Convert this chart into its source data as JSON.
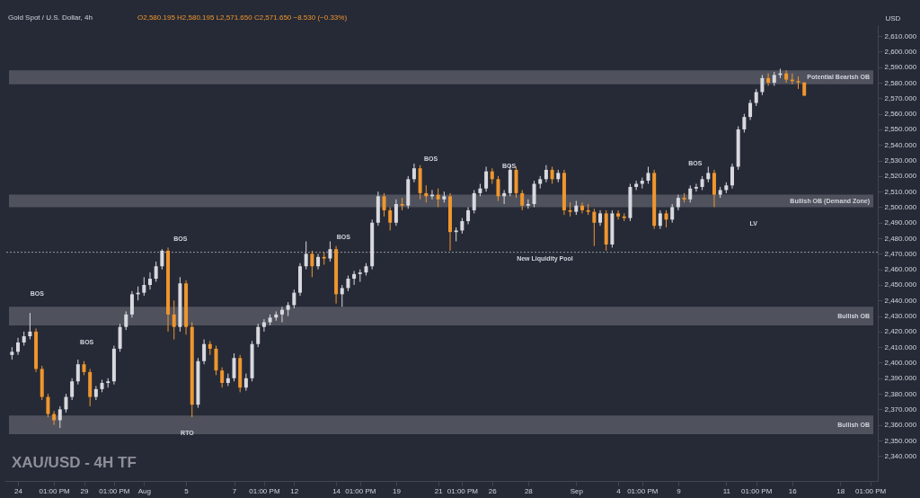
{
  "chart_data": {
    "type": "candlestick",
    "title": "XAU/USD - 4H TF",
    "subtitle": "Gold Spot / U.S. Dollar, 4h",
    "ylabel": "USD",
    "categories": [
      null,
      "24",
      null,
      null,
      null,
      null,
      null,
      "01:00 PM",
      null,
      null,
      null,
      null,
      "29",
      null,
      null,
      null,
      null,
      "01:00 PM",
      null,
      null,
      null,
      null,
      "Aug",
      null,
      null,
      null,
      null,
      null,
      null,
      "5",
      null,
      null,
      null,
      null,
      null,
      null,
      null,
      "7",
      null,
      null,
      null,
      null,
      "01:00 PM",
      null,
      null,
      null,
      null,
      "12",
      null,
      null,
      null,
      null,
      null,
      null,
      "14",
      null,
      null,
      null,
      "01:00 PM",
      null,
      null,
      null,
      null,
      null,
      "19",
      null,
      null,
      null,
      null,
      null,
      null,
      "21",
      null,
      null,
      null,
      "01:00 PM",
      null,
      null,
      null,
      null,
      "26",
      null,
      null,
      null,
      null,
      null,
      "28",
      null,
      null,
      null,
      null,
      null,
      null,
      null,
      "Sep",
      null,
      null,
      null,
      null,
      null,
      null,
      "4",
      null,
      null,
      null,
      "01:00 PM",
      null,
      null,
      null,
      null,
      null,
      "9",
      null,
      null,
      null,
      null,
      null,
      null,
      null,
      "11",
      null,
      null,
      null,
      null,
      "01:00 PM",
      null,
      null,
      null,
      null,
      null,
      "16",
      null,
      null,
      null,
      null,
      null,
      null,
      null,
      "18",
      null,
      null,
      null,
      null,
      "01:00 PM"
    ],
    "ohlc": [
      [
        2405,
        2410,
        2402,
        2407
      ],
      [
        2407,
        2416,
        2405,
        2413
      ],
      [
        2413,
        2420,
        2411,
        2417
      ],
      [
        2417,
        2432,
        2415,
        2420
      ],
      [
        2420,
        2422,
        2394,
        2396
      ],
      [
        2396,
        2398,
        2376,
        2378
      ],
      [
        2378,
        2380,
        2365,
        2367
      ],
      [
        2367,
        2369,
        2360,
        2363
      ],
      [
        2363,
        2372,
        2358,
        2370
      ],
      [
        2370,
        2380,
        2368,
        2378
      ],
      [
        2378,
        2390,
        2376,
        2388
      ],
      [
        2388,
        2402,
        2386,
        2399
      ],
      [
        2399,
        2401,
        2392,
        2394
      ],
      [
        2394,
        2396,
        2372,
        2378
      ],
      [
        2378,
        2385,
        2376,
        2383
      ],
      [
        2383,
        2389,
        2381,
        2387
      ],
      [
        2387,
        2390,
        2384,
        2388
      ],
      [
        2388,
        2411,
        2386,
        2409
      ],
      [
        2409,
        2425,
        2407,
        2423
      ],
      [
        2423,
        2433,
        2421,
        2431
      ],
      [
        2431,
        2446,
        2429,
        2444
      ],
      [
        2444,
        2449,
        2440,
        2445
      ],
      [
        2445,
        2455,
        2443,
        2450
      ],
      [
        2450,
        2458,
        2447,
        2454
      ],
      [
        2454,
        2465,
        2452,
        2462
      ],
      [
        2462,
        2473,
        2460,
        2472
      ],
      [
        2472,
        2474,
        2420,
        2431
      ],
      [
        2431,
        2440,
        2415,
        2423
      ],
      [
        2423,
        2455,
        2420,
        2451
      ],
      [
        2451,
        2453,
        2418,
        2423
      ],
      [
        2423,
        2426,
        2365,
        2373
      ],
      [
        2373,
        2403,
        2371,
        2401
      ],
      [
        2401,
        2415,
        2399,
        2412
      ],
      [
        2412,
        2414,
        2405,
        2409
      ],
      [
        2409,
        2411,
        2392,
        2395
      ],
      [
        2395,
        2397,
        2384,
        2387
      ],
      [
        2387,
        2393,
        2385,
        2390
      ],
      [
        2390,
        2406,
        2388,
        2403
      ],
      [
        2403,
        2405,
        2381,
        2384
      ],
      [
        2384,
        2393,
        2382,
        2390
      ],
      [
        2390,
        2414,
        2388,
        2412
      ],
      [
        2412,
        2425,
        2410,
        2423
      ],
      [
        2423,
        2428,
        2420,
        2426
      ],
      [
        2426,
        2431,
        2424,
        2429
      ],
      [
        2429,
        2433,
        2427,
        2431
      ],
      [
        2431,
        2436,
        2426,
        2434
      ],
      [
        2434,
        2439,
        2430,
        2437
      ],
      [
        2437,
        2447,
        2435,
        2445
      ],
      [
        2445,
        2464,
        2443,
        2462
      ],
      [
        2462,
        2478,
        2460,
        2470
      ],
      [
        2470,
        2472,
        2455,
        2462
      ],
      [
        2462,
        2470,
        2460,
        2468
      ],
      [
        2468,
        2471,
        2463,
        2467
      ],
      [
        2467,
        2478,
        2465,
        2473
      ],
      [
        2473,
        2475,
        2438,
        2444
      ],
      [
        2444,
        2450,
        2436,
        2448
      ],
      [
        2448,
        2456,
        2446,
        2454
      ],
      [
        2454,
        2459,
        2450,
        2457
      ],
      [
        2457,
        2460,
        2452,
        2458
      ],
      [
        2458,
        2464,
        2456,
        2462
      ],
      [
        2462,
        2492,
        2460,
        2490
      ],
      [
        2490,
        2510,
        2488,
        2507
      ],
      [
        2507,
        2509,
        2494,
        2498
      ],
      [
        2498,
        2500,
        2485,
        2490
      ],
      [
        2490,
        2505,
        2488,
        2502
      ],
      [
        2502,
        2506,
        2498,
        2501
      ],
      [
        2501,
        2520,
        2499,
        2518
      ],
      [
        2518,
        2528,
        2516,
        2525
      ],
      [
        2525,
        2527,
        2505,
        2509
      ],
      [
        2509,
        2514,
        2503,
        2507
      ],
      [
        2507,
        2511,
        2505,
        2508
      ],
      [
        2508,
        2512,
        2500,
        2505
      ],
      [
        2505,
        2510,
        2503,
        2507
      ],
      [
        2507,
        2509,
        2472,
        2484
      ],
      [
        2484,
        2487,
        2478,
        2485
      ],
      [
        2485,
        2493,
        2483,
        2491
      ],
      [
        2491,
        2500,
        2489,
        2498
      ],
      [
        2498,
        2511,
        2496,
        2509
      ],
      [
        2509,
        2515,
        2507,
        2512
      ],
      [
        2512,
        2526,
        2510,
        2523
      ],
      [
        2523,
        2525,
        2515,
        2518
      ],
      [
        2518,
        2520,
        2504,
        2507
      ],
      [
        2507,
        2511,
        2502,
        2509
      ],
      [
        2509,
        2527,
        2507,
        2524
      ],
      [
        2524,
        2526,
        2506,
        2509
      ],
      [
        2509,
        2511,
        2498,
        2501
      ],
      [
        2501,
        2505,
        2499,
        2502
      ],
      [
        2502,
        2517,
        2500,
        2515
      ],
      [
        2515,
        2520,
        2512,
        2518
      ],
      [
        2518,
        2527,
        2516,
        2524
      ],
      [
        2524,
        2526,
        2515,
        2518
      ],
      [
        2518,
        2524,
        2516,
        2522
      ],
      [
        2522,
        2524,
        2495,
        2498
      ],
      [
        2498,
        2503,
        2494,
        2497
      ],
      [
        2497,
        2504,
        2495,
        2501
      ],
      [
        2501,
        2503,
        2496,
        2498
      ],
      [
        2498,
        2502,
        2495,
        2497
      ],
      [
        2497,
        2499,
        2475,
        2490
      ],
      [
        2490,
        2498,
        2488,
        2496
      ],
      [
        2496,
        2498,
        2472,
        2476
      ],
      [
        2476,
        2498,
        2474,
        2496
      ],
      [
        2496,
        2498,
        2492,
        2494
      ],
      [
        2494,
        2496,
        2491,
        2493
      ],
      [
        2493,
        2515,
        2491,
        2513
      ],
      [
        2513,
        2517,
        2511,
        2515
      ],
      [
        2515,
        2519,
        2512,
        2517
      ],
      [
        2517,
        2526,
        2515,
        2522
      ],
      [
        2522,
        2524,
        2486,
        2488
      ],
      [
        2488,
        2498,
        2486,
        2496
      ],
      [
        2496,
        2498,
        2487,
        2492
      ],
      [
        2492,
        2502,
        2490,
        2500
      ],
      [
        2500,
        2508,
        2498,
        2506
      ],
      [
        2506,
        2509,
        2503,
        2505
      ],
      [
        2505,
        2514,
        2503,
        2512
      ],
      [
        2512,
        2515,
        2510,
        2513
      ],
      [
        2513,
        2520,
        2511,
        2518
      ],
      [
        2518,
        2526,
        2516,
        2522
      ],
      [
        2522,
        2524,
        2500,
        2508
      ],
      [
        2508,
        2513,
        2506,
        2511
      ],
      [
        2511,
        2516,
        2509,
        2514
      ],
      [
        2514,
        2528,
        2512,
        2526
      ],
      [
        2526,
        2552,
        2524,
        2550
      ],
      [
        2550,
        2560,
        2548,
        2558
      ],
      [
        2558,
        2569,
        2556,
        2567
      ],
      [
        2567,
        2576,
        2565,
        2574
      ],
      [
        2574,
        2585,
        2572,
        2583
      ],
      [
        2583,
        2586,
        2578,
        2580
      ],
      [
        2580,
        2587,
        2578,
        2585
      ],
      [
        2585,
        2589,
        2583,
        2586
      ],
      [
        2586,
        2588,
        2580,
        2582
      ],
      [
        2582,
        2586,
        2579,
        2581
      ],
      [
        2581,
        2584,
        2576,
        2580.195
      ],
      [
        2580.195,
        2580.195,
        2571.65,
        2571.65
      ],
      null,
      null,
      null,
      null,
      null,
      null,
      null,
      null,
      null,
      null,
      null
    ],
    "colors": [
      "#d8d9df",
      "#d8d9df",
      "#d8d9df",
      "#d8d9df",
      "#f0962e",
      "#f0962e",
      "#f0962e",
      "#f0962e",
      "#d8d9df",
      "#d8d9df",
      "#d8d9df",
      "#d8d9df",
      "#f0962e",
      "#f0962e",
      "#d8d9df",
      "#d8d9df",
      "#d8d9df",
      "#d8d9df",
      "#d8d9df",
      "#d8d9df",
      "#d8d9df",
      "#d8d9df",
      "#d8d9df",
      "#d8d9df",
      "#d8d9df",
      "#d8d9df",
      "#f0962e",
      "#f0962e",
      "#d8d9df",
      "#f0962e",
      "#f0962e",
      "#d8d9df",
      "#d8d9df",
      "#f0962e",
      "#f0962e",
      "#f0962e",
      "#d8d9df",
      "#d8d9df",
      "#f0962e",
      "#d8d9df",
      "#d8d9df",
      "#d8d9df",
      "#d8d9df",
      "#d8d9df",
      "#d8d9df",
      "#d8d9df",
      "#d8d9df",
      "#d8d9df",
      "#d8d9df",
      "#d8d9df",
      "#f0962e",
      "#d8d9df",
      "#f0962e",
      "#d8d9df",
      "#f0962e",
      "#d8d9df",
      "#d8d9df",
      "#d8d9df",
      "#d8d9df",
      "#d8d9df",
      "#d8d9df",
      "#d8d9df",
      "#f0962e",
      "#f0962e",
      "#d8d9df",
      "#f0962e",
      "#d8d9df",
      "#d8d9df",
      "#f0962e",
      "#f0962e",
      "#d8d9df",
      "#f0962e",
      "#d8d9df",
      "#f0962e",
      "#d8d9df",
      "#d8d9df",
      "#d8d9df",
      "#d8d9df",
      "#d8d9df",
      "#d8d9df",
      "#f0962e",
      "#f0962e",
      "#d8d9df",
      "#d8d9df",
      "#f0962e",
      "#f0962e",
      "#d8d9df",
      "#d8d9df",
      "#d8d9df",
      "#d8d9df",
      "#f0962e",
      "#d8d9df",
      "#f0962e",
      "#f0962e",
      "#d8d9df",
      "#f0962e",
      "#f0962e",
      "#f0962e",
      "#d8d9df",
      "#f0962e",
      "#d8d9df",
      "#f0962e",
      "#f0962e",
      "#d8d9df",
      "#d8d9df",
      "#d8d9df",
      "#d8d9df",
      "#f0962e",
      "#d8d9df",
      "#f0962e",
      "#d8d9df",
      "#d8d9df",
      "#f0962e",
      "#d8d9df",
      "#d8d9df",
      "#d8d9df",
      "#d8d9df",
      "#f0962e",
      "#d8d9df",
      "#d8d9df",
      "#d8d9df",
      "#d8d9df",
      "#d8d9df",
      "#d8d9df",
      "#d8d9df",
      "#d8d9df",
      "#f0962e",
      "#d8d9df",
      "#d8d9df",
      "#f0962e",
      "#f0962e",
      "#f0962e",
      "#f0962e",
      null,
      null,
      null,
      null,
      null,
      null,
      null,
      null,
      null,
      null,
      null
    ],
    "ylim": [
      2324,
      2617
    ],
    "yticks": [
      {
        "value": 2340,
        "label": "2,340.000"
      },
      {
        "value": 2350,
        "label": "2,350.000"
      },
      {
        "value": 2360,
        "label": "2,360.000"
      },
      {
        "value": 2370,
        "label": "2,370.000"
      },
      {
        "value": 2380,
        "label": "2,380.000"
      },
      {
        "value": 2390,
        "label": "2,390.000"
      },
      {
        "value": 2400,
        "label": "2,400.000"
      },
      {
        "value": 2410,
        "label": "2,410.000"
      },
      {
        "value": 2420,
        "label": "2,420.000"
      },
      {
        "value": 2430,
        "label": "2,430.000"
      },
      {
        "value": 2440,
        "label": "2,440.000"
      },
      {
        "value": 2450,
        "label": "2,450.000"
      },
      {
        "value": 2460,
        "label": "2,460.000"
      },
      {
        "value": 2470,
        "label": "2,470.000"
      },
      {
        "value": 2480,
        "label": "2,480.000"
      },
      {
        "value": 2490,
        "label": "2,490.000"
      },
      {
        "value": 2500,
        "label": "2,500.000"
      },
      {
        "value": 2510,
        "label": "2,510.000"
      },
      {
        "value": 2520,
        "label": "2,520.000"
      },
      {
        "value": 2530,
        "label": "2,530.000"
      },
      {
        "value": 2540,
        "label": "2,540.000"
      },
      {
        "value": 2550,
        "label": "2,550.000"
      },
      {
        "value": 2560,
        "label": "2,560.000"
      },
      {
        "value": 2570,
        "label": "2,570.000"
      },
      {
        "value": 2580,
        "label": "2,580.000"
      },
      {
        "value": 2590,
        "label": "2,590.000"
      },
      {
        "value": 2600,
        "label": "2,600.000"
      },
      {
        "value": 2610,
        "label": "2,610.000"
      }
    ],
    "bands": [
      {
        "axis": "y",
        "from": 2354,
        "to": 2366,
        "label": "Bullish OB",
        "color": "#5d606b"
      },
      {
        "axis": "y",
        "from": 2424,
        "to": 2436,
        "label": "Bullish OB",
        "color": "#5d606b"
      },
      {
        "axis": "y",
        "from": 2500,
        "to": 2508,
        "label": "Bullish OB (Demand Zone)",
        "color": "#5d606b"
      },
      {
        "axis": "y",
        "from": 2579,
        "to": 2588,
        "label": "Potential Bearish OB",
        "color": "#5d606b"
      }
    ],
    "ref_lines": [
      {
        "axis": "y",
        "value": 2471,
        "label": "New Liquidity Pool",
        "line_style": "dotted"
      }
    ],
    "annotations": [
      "O2,580.195 H2,580.195 L2,571.650 C2,571.650 −8.530 (−0.33%)",
      "BOS",
      "BOS",
      "BOS",
      "BOS",
      "BOS",
      "BOS",
      "BOS",
      "RTO",
      "LV"
    ],
    "grid": false
  }
}
